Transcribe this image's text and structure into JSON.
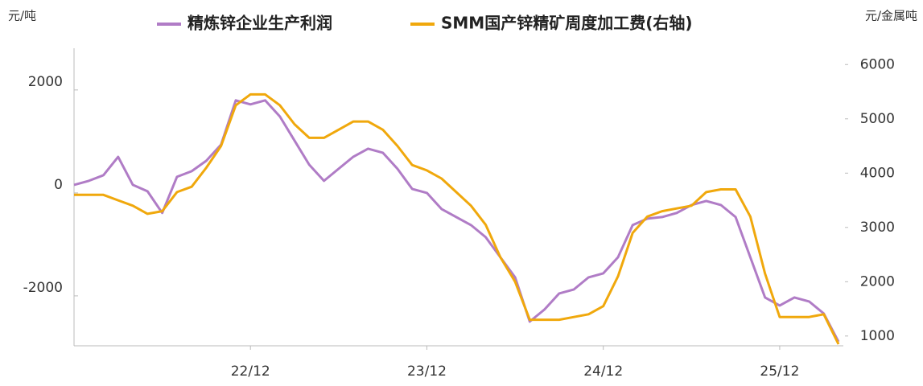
{
  "chart_data": {
    "type": "line",
    "y_label": "元/吨",
    "y2_label": "元/金属吨",
    "categories": [
      null,
      null,
      null,
      null,
      null,
      null,
      null,
      null,
      null,
      null,
      null,
      null,
      "22/12",
      null,
      null,
      null,
      null,
      null,
      null,
      null,
      null,
      null,
      null,
      null,
      "23/12",
      null,
      null,
      null,
      null,
      null,
      null,
      null,
      null,
      null,
      null,
      null,
      "24/12",
      null,
      null,
      null,
      null,
      null,
      null,
      null,
      null,
      null,
      null,
      null,
      "25/12",
      null,
      null,
      null,
      null
    ],
    "series": [
      {
        "name": "精炼锌企业生产利润",
        "color": "#b07cc6",
        "values": [
          156,
          234,
          344,
          700,
          156,
          31,
          -390,
          312,
          422,
          625,
          937,
          1797,
          1719,
          1797,
          1484,
          1016,
          547,
          234,
          469,
          703,
          859,
          781,
          469,
          78,
          0,
          -312,
          -469,
          -625,
          -859,
          -1250,
          -1641,
          -2500,
          -2266,
          -1953,
          -1875,
          -1641,
          -1563,
          -1250,
          -625,
          -500,
          -469,
          -390,
          -234,
          -156,
          -234,
          -469,
          -1250,
          -2031,
          -2188,
          -2031,
          -2109,
          -2344,
          -2891
        ]
      },
      {
        "name": "SMM国产锌精矿周度加工费(右轴)",
        "color": "#f0a80c",
        "axis": "y2",
        "values": [
          3600,
          3600,
          3600,
          3500,
          3400,
          3250,
          3300,
          3650,
          3750,
          4100,
          4500,
          5250,
          5450,
          5450,
          5250,
          4900,
          4650,
          4650,
          4800,
          4950,
          4950,
          4800,
          4500,
          4150,
          4050,
          3900,
          3650,
          3400,
          3050,
          2450,
          2000,
          1300,
          1300,
          1300,
          1350,
          1400,
          1550,
          2100,
          2900,
          3200,
          3300,
          3350,
          3400,
          3650,
          3700,
          3700,
          3200,
          2150,
          1350,
          1350,
          1350,
          1400,
          850
        ]
      }
    ],
    "ylim": [
      -2970,
      2810
    ],
    "yticks": [
      -2000,
      0,
      2000
    ],
    "y2lim": [
      820,
      6300
    ],
    "y2ticks": [
      1000,
      2000,
      3000,
      4000,
      5000,
      6000
    ],
    "legend": "top"
  }
}
